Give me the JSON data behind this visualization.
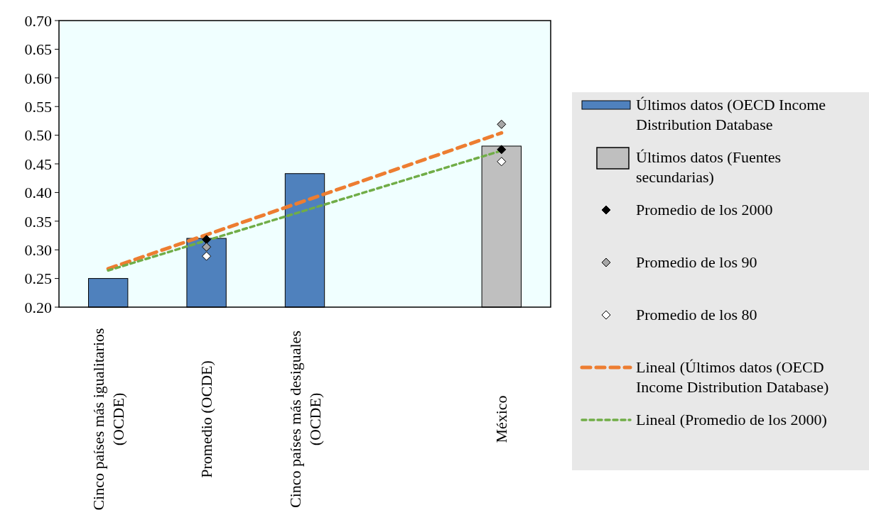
{
  "chart_data": {
    "type": "bar",
    "categories": [
      "Cinco países más igualitarios (OCDE)",
      "Promedio (OCDE)",
      "Cinco países más desiguales (OCDE)",
      null,
      "México"
    ],
    "series": [
      {
        "name": "Últimos datos (OECD Income Distribution Database",
        "color": "#4f81bd",
        "values": [
          0.25,
          0.32,
          0.433,
          null,
          null
        ]
      },
      {
        "name": "Últimos datos (Fuentes secundarias)",
        "color": "#bfbfbf",
        "values": [
          null,
          null,
          null,
          null,
          0.481
        ]
      },
      {
        "name": "Promedio de los 2000",
        "type": "scatter",
        "marker": "diamond",
        "color": "#000000",
        "x": [
          "Promedio (OCDE)",
          "México"
        ],
        "values": [
          0.318,
          0.475
        ]
      },
      {
        "name": "Promedio de los 90",
        "type": "scatter",
        "marker": "diamond",
        "color": "#a6a6a6",
        "x": [
          "Promedio (OCDE)",
          "México"
        ],
        "values": [
          0.305,
          0.519
        ]
      },
      {
        "name": "Promedio de los 80",
        "type": "scatter",
        "marker": "diamond",
        "color": "#ffffff",
        "x": [
          "Promedio (OCDE)",
          "México"
        ],
        "values": [
          0.289,
          0.454
        ]
      },
      {
        "name": "Lineal (Últimos datos (OECD Income Distribution Database)",
        "type": "line",
        "line_style": "dashed",
        "color": "#ed7d31",
        "x": [
          "Cinco países más igualitarios (OCDE)",
          "México"
        ],
        "values": [
          0.267,
          0.504
        ]
      },
      {
        "name": "Lineal (Promedio de los 2000)",
        "type": "line",
        "line_style": "dotted",
        "color": "#70ad47",
        "x": [
          "Cinco países más igualitarios (OCDE)",
          "México"
        ],
        "values": [
          0.264,
          0.473
        ]
      }
    ],
    "ylim": [
      0.2,
      0.7
    ],
    "yticks": [
      {
        "value": 0.2,
        "label": "0.20"
      },
      {
        "value": 0.25,
        "label": "0.25"
      },
      {
        "value": 0.3,
        "label": "0.30"
      },
      {
        "value": 0.35,
        "label": "0.35"
      },
      {
        "value": 0.4,
        "label": "0.40"
      },
      {
        "value": 0.45,
        "label": "0.45"
      },
      {
        "value": 0.5,
        "label": "0.50"
      },
      {
        "value": 0.55,
        "label": "0.55"
      },
      {
        "value": 0.6,
        "label": "0.60"
      },
      {
        "value": 0.65,
        "label": "0.65"
      },
      {
        "value": 0.7,
        "label": "0.70"
      }
    ],
    "grid": false,
    "legend": "right"
  }
}
